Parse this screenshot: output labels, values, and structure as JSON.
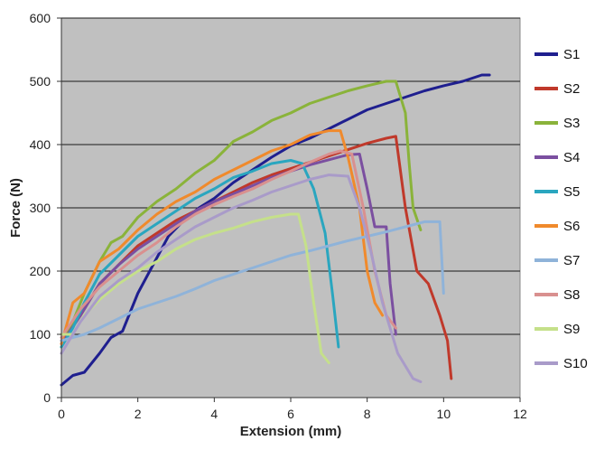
{
  "chart_data": {
    "type": "line",
    "title": "",
    "xlabel": "Extension (mm)",
    "ylabel": "Force (N)",
    "xlim": [
      0,
      12
    ],
    "ylim": [
      0,
      600
    ],
    "x_ticks": [
      "0",
      "2",
      "4",
      "6",
      "8",
      "10",
      "12"
    ],
    "y_ticks": [
      "0",
      "100",
      "200",
      "300",
      "400",
      "500",
      "600"
    ],
    "grid": "horizontal major gridlines",
    "plot_background": "#c0c0c0",
    "legend_position": "right",
    "series": [
      {
        "name": "S1",
        "color": "#1f1f8f",
        "points": [
          [
            0,
            20
          ],
          [
            0.3,
            35
          ],
          [
            0.6,
            40
          ],
          [
            1.0,
            70
          ],
          [
            1.3,
            95
          ],
          [
            1.6,
            105
          ],
          [
            2.0,
            165
          ],
          [
            2.4,
            210
          ],
          [
            2.8,
            255
          ],
          [
            3.2,
            280
          ],
          [
            3.6,
            300
          ],
          [
            4.0,
            315
          ],
          [
            4.5,
            340
          ],
          [
            5.0,
            360
          ],
          [
            5.5,
            380
          ],
          [
            6.0,
            398
          ],
          [
            6.5,
            410
          ],
          [
            7.0,
            425
          ],
          [
            7.5,
            440
          ],
          [
            8.0,
            455
          ],
          [
            8.5,
            465
          ],
          [
            9.0,
            475
          ],
          [
            9.5,
            485
          ],
          [
            10.0,
            493
          ],
          [
            10.5,
            500
          ],
          [
            11.0,
            510
          ],
          [
            11.2,
            510
          ]
        ]
      },
      {
        "name": "S2",
        "color": "#c0392b",
        "points": [
          [
            0,
            90
          ],
          [
            0.5,
            130
          ],
          [
            1.0,
            180
          ],
          [
            1.5,
            210
          ],
          [
            2.0,
            240
          ],
          [
            2.5,
            260
          ],
          [
            3.0,
            280
          ],
          [
            3.5,
            295
          ],
          [
            4.0,
            310
          ],
          [
            4.5,
            325
          ],
          [
            5.0,
            340
          ],
          [
            5.5,
            352
          ],
          [
            6.0,
            362
          ],
          [
            6.5,
            372
          ],
          [
            7.0,
            382
          ],
          [
            7.5,
            392
          ],
          [
            8.0,
            402
          ],
          [
            8.5,
            410
          ],
          [
            8.75,
            413
          ],
          [
            9.0,
            300
          ],
          [
            9.3,
            200
          ],
          [
            9.6,
            180
          ],
          [
            9.9,
            130
          ],
          [
            10.1,
            90
          ],
          [
            10.2,
            30
          ]
        ]
      },
      {
        "name": "S3",
        "color": "#8ab33a",
        "points": [
          [
            0,
            80
          ],
          [
            0.3,
            120
          ],
          [
            0.6,
            165
          ],
          [
            1.0,
            215
          ],
          [
            1.3,
            245
          ],
          [
            1.6,
            255
          ],
          [
            2.0,
            285
          ],
          [
            2.5,
            310
          ],
          [
            3.0,
            330
          ],
          [
            3.5,
            355
          ],
          [
            4.0,
            375
          ],
          [
            4.5,
            405
          ],
          [
            5.0,
            420
          ],
          [
            5.5,
            438
          ],
          [
            6.0,
            450
          ],
          [
            6.5,
            465
          ],
          [
            7.0,
            475
          ],
          [
            7.5,
            485
          ],
          [
            8.0,
            493
          ],
          [
            8.5,
            500
          ],
          [
            8.75,
            500
          ],
          [
            9.0,
            450
          ],
          [
            9.1,
            370
          ],
          [
            9.2,
            300
          ],
          [
            9.4,
            265
          ]
        ]
      },
      {
        "name": "S4",
        "color": "#7b4fa0",
        "points": [
          [
            0,
            85
          ],
          [
            0.5,
            130
          ],
          [
            1.0,
            180
          ],
          [
            1.5,
            210
          ],
          [
            2.0,
            235
          ],
          [
            2.5,
            255
          ],
          [
            3.0,
            275
          ],
          [
            3.5,
            295
          ],
          [
            4.0,
            310
          ],
          [
            4.5,
            322
          ],
          [
            5.0,
            335
          ],
          [
            5.5,
            348
          ],
          [
            6.0,
            358
          ],
          [
            6.5,
            368
          ],
          [
            7.0,
            376
          ],
          [
            7.5,
            384
          ],
          [
            7.8,
            385
          ],
          [
            8.0,
            330
          ],
          [
            8.2,
            270
          ],
          [
            8.5,
            270
          ],
          [
            8.6,
            180
          ],
          [
            8.75,
            100
          ]
        ]
      },
      {
        "name": "S5",
        "color": "#2aa6bf",
        "points": [
          [
            0,
            80
          ],
          [
            0.3,
            110
          ],
          [
            0.6,
            150
          ],
          [
            1.0,
            195
          ],
          [
            1.5,
            225
          ],
          [
            2.0,
            255
          ],
          [
            2.5,
            275
          ],
          [
            3.0,
            295
          ],
          [
            3.5,
            315
          ],
          [
            4.0,
            330
          ],
          [
            4.5,
            348
          ],
          [
            5.0,
            358
          ],
          [
            5.5,
            370
          ],
          [
            6.0,
            375
          ],
          [
            6.3,
            370
          ],
          [
            6.6,
            330
          ],
          [
            6.9,
            260
          ],
          [
            7.1,
            160
          ],
          [
            7.25,
            80
          ]
        ]
      },
      {
        "name": "S6",
        "color": "#f08a2c",
        "points": [
          [
            0,
            85
          ],
          [
            0.3,
            150
          ],
          [
            0.6,
            165
          ],
          [
            1.0,
            215
          ],
          [
            1.5,
            235
          ],
          [
            2.0,
            265
          ],
          [
            2.5,
            290
          ],
          [
            3.0,
            310
          ],
          [
            3.5,
            325
          ],
          [
            4.0,
            345
          ],
          [
            4.5,
            360
          ],
          [
            5.0,
            375
          ],
          [
            5.5,
            390
          ],
          [
            6.0,
            400
          ],
          [
            6.5,
            415
          ],
          [
            7.0,
            422
          ],
          [
            7.3,
            422
          ],
          [
            7.5,
            380
          ],
          [
            7.8,
            300
          ],
          [
            8.0,
            200
          ],
          [
            8.2,
            150
          ],
          [
            8.4,
            130
          ]
        ]
      },
      {
        "name": "S7",
        "color": "#8fb3d9",
        "points": [
          [
            0,
            90
          ],
          [
            0.3,
            95
          ],
          [
            0.6,
            100
          ],
          [
            1.0,
            110
          ],
          [
            1.5,
            125
          ],
          [
            2.0,
            140
          ],
          [
            2.5,
            150
          ],
          [
            3.0,
            160
          ],
          [
            3.5,
            172
          ],
          [
            4.0,
            185
          ],
          [
            4.5,
            195
          ],
          [
            5.0,
            205
          ],
          [
            5.5,
            215
          ],
          [
            6.0,
            225
          ],
          [
            6.5,
            232
          ],
          [
            7.0,
            240
          ],
          [
            7.5,
            248
          ],
          [
            8.0,
            255
          ],
          [
            8.5,
            262
          ],
          [
            9.0,
            270
          ],
          [
            9.5,
            278
          ],
          [
            9.9,
            278
          ],
          [
            10.0,
            165
          ]
        ]
      },
      {
        "name": "S8",
        "color": "#d9908f",
        "points": [
          [
            0,
            95
          ],
          [
            0.5,
            140
          ],
          [
            1.0,
            175
          ],
          [
            1.5,
            200
          ],
          [
            2.0,
            225
          ],
          [
            2.5,
            245
          ],
          [
            3.0,
            270
          ],
          [
            3.5,
            290
          ],
          [
            4.0,
            305
          ],
          [
            4.5,
            318
          ],
          [
            5.0,
            330
          ],
          [
            5.5,
            345
          ],
          [
            6.0,
            358
          ],
          [
            6.5,
            372
          ],
          [
            7.0,
            385
          ],
          [
            7.3,
            390
          ],
          [
            7.6,
            385
          ],
          [
            7.9,
            300
          ],
          [
            8.2,
            200
          ],
          [
            8.5,
            130
          ],
          [
            8.75,
            110
          ]
        ]
      },
      {
        "name": "S9",
        "color": "#c5e08a",
        "points": [
          [
            0,
            100
          ],
          [
            0.3,
            100
          ],
          [
            0.6,
            130
          ],
          [
            1.0,
            155
          ],
          [
            1.5,
            180
          ],
          [
            2.0,
            200
          ],
          [
            2.5,
            215
          ],
          [
            3.0,
            235
          ],
          [
            3.5,
            250
          ],
          [
            4.0,
            260
          ],
          [
            4.5,
            268
          ],
          [
            5.0,
            278
          ],
          [
            5.5,
            285
          ],
          [
            6.0,
            290
          ],
          [
            6.2,
            290
          ],
          [
            6.4,
            240
          ],
          [
            6.6,
            150
          ],
          [
            6.8,
            70
          ],
          [
            7.0,
            55
          ]
        ]
      },
      {
        "name": "S10",
        "color": "#a99bc9",
        "points": [
          [
            0,
            70
          ],
          [
            0.5,
            120
          ],
          [
            1.0,
            160
          ],
          [
            1.5,
            185
          ],
          [
            2.0,
            205
          ],
          [
            2.5,
            230
          ],
          [
            3.0,
            250
          ],
          [
            3.5,
            270
          ],
          [
            4.0,
            285
          ],
          [
            4.5,
            300
          ],
          [
            5.0,
            312
          ],
          [
            5.5,
            325
          ],
          [
            6.0,
            335
          ],
          [
            6.5,
            345
          ],
          [
            7.0,
            352
          ],
          [
            7.5,
            350
          ],
          [
            7.8,
            300
          ],
          [
            8.1,
            230
          ],
          [
            8.4,
            150
          ],
          [
            8.8,
            70
          ],
          [
            9.2,
            30
          ],
          [
            9.4,
            25
          ]
        ]
      }
    ]
  }
}
